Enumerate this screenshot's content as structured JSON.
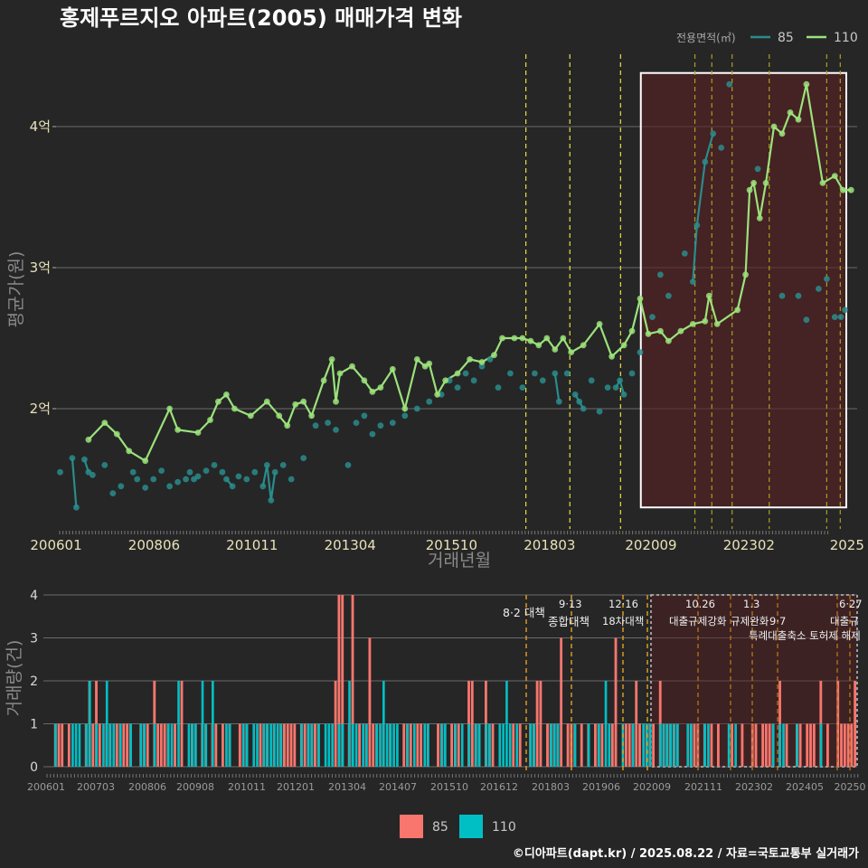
{
  "title": "홍제푸르지오 아파트(2005) 매매가격 변화",
  "legend": {
    "title": "전용면적(㎡)",
    "items": [
      {
        "name": "85",
        "color": "#2a8c8c"
      },
      {
        "name": "110",
        "color": "#9be27b"
      }
    ]
  },
  "bottom_legend": [
    {
      "name": "85",
      "color": "#f8766d"
    },
    {
      "name": "110",
      "color": "#00bfc4"
    }
  ],
  "credit": "©디아파트(dapt.kr) / 2025.08.22 / 자료=국토교통부 실거래가",
  "chart_data": [
    {
      "type": "line",
      "ylabel": "평균가(원)",
      "xlabel": "거래년월",
      "ylim": [
        1.25,
        4.45
      ],
      "yticks": [
        {
          "v": 2,
          "label": "2억"
        },
        {
          "v": 3,
          "label": "3억"
        },
        {
          "v": 4,
          "label": "4억"
        }
      ],
      "xlim": [
        2006.0,
        2025.75
      ],
      "xticks": [
        {
          "v": 2006.0,
          "label": "200601"
        },
        {
          "v": 2008.417,
          "label": "200806"
        },
        {
          "v": 2010.833,
          "label": "201011"
        },
        {
          "v": 2013.25,
          "label": "201304"
        },
        {
          "v": 2015.75,
          "label": "201510"
        },
        {
          "v": 2018.167,
          "label": "201803"
        },
        {
          "v": 2020.667,
          "label": "202009"
        },
        {
          "v": 2023.083,
          "label": "202302"
        },
        {
          "v": 2025.5,
          "label": "2025"
        }
      ],
      "policy_lines": [
        2017.583,
        2018.667,
        2019.917,
        2021.75,
        2022.167,
        2022.667,
        2023.583,
        2025.0,
        2025.333
      ],
      "highlight": {
        "x0": 2020.417,
        "x1": 2025.75,
        "y0": 1.3,
        "y1": 4.38
      },
      "series": [
        {
          "name": "85",
          "color": "#2a8c8c",
          "points": [
            [
              2006.1,
              1.55
            ],
            [
              2006.4,
              1.65
            ],
            [
              2006.5,
              1.3
            ],
            [
              2006.7,
              1.64
            ],
            [
              2006.8,
              1.55
            ],
            [
              2006.9,
              1.53
            ],
            [
              2007.2,
              1.6
            ],
            [
              2007.4,
              1.4
            ],
            [
              2007.6,
              1.45
            ],
            [
              2007.9,
              1.55
            ],
            [
              2008.0,
              1.5
            ],
            [
              2008.2,
              1.44
            ],
            [
              2008.4,
              1.5
            ],
            [
              2008.6,
              1.56
            ],
            [
              2008.8,
              1.45
            ],
            [
              2009.0,
              1.48
            ],
            [
              2009.2,
              1.5
            ],
            [
              2009.3,
              1.55
            ],
            [
              2009.4,
              1.5
            ],
            [
              2009.5,
              1.52
            ],
            [
              2009.7,
              1.56
            ],
            [
              2009.9,
              1.6
            ],
            [
              2010.1,
              1.55
            ],
            [
              2010.2,
              1.5
            ],
            [
              2010.35,
              1.45
            ],
            [
              2010.5,
              1.52
            ],
            [
              2010.7,
              1.5
            ],
            [
              2010.9,
              1.55
            ],
            [
              2011.1,
              1.45
            ],
            [
              2011.2,
              1.6
            ],
            [
              2011.3,
              1.35
            ],
            [
              2011.4,
              1.55
            ],
            [
              2011.6,
              1.6
            ],
            [
              2011.8,
              1.5
            ],
            [
              2012.1,
              1.65
            ],
            [
              2012.4,
              1.88
            ],
            [
              2012.7,
              1.9
            ],
            [
              2012.9,
              1.85
            ],
            [
              2013.2,
              1.6
            ],
            [
              2013.4,
              1.9
            ],
            [
              2013.6,
              1.95
            ],
            [
              2013.8,
              1.82
            ],
            [
              2014.0,
              1.88
            ],
            [
              2014.3,
              1.9
            ],
            [
              2014.6,
              1.95
            ],
            [
              2014.9,
              2.0
            ],
            [
              2015.2,
              2.05
            ],
            [
              2015.5,
              2.1
            ],
            [
              2015.7,
              2.2
            ],
            [
              2015.9,
              2.15
            ],
            [
              2016.1,
              2.25
            ],
            [
              2016.3,
              2.2
            ],
            [
              2016.5,
              2.3
            ],
            [
              2016.7,
              2.35
            ],
            [
              2016.9,
              2.15
            ],
            [
              2017.2,
              2.25
            ],
            [
              2017.5,
              2.15
            ],
            [
              2017.8,
              2.25
            ],
            [
              2018.0,
              2.2
            ],
            [
              2018.3,
              2.25
            ],
            [
              2018.4,
              2.05
            ],
            [
              2018.6,
              2.25
            ],
            [
              2018.8,
              2.1
            ],
            [
              2018.9,
              2.05
            ],
            [
              2019.0,
              2.0
            ],
            [
              2019.2,
              2.2
            ],
            [
              2019.4,
              1.98
            ],
            [
              2019.6,
              2.15
            ],
            [
              2019.8,
              2.15
            ],
            [
              2019.9,
              2.2
            ],
            [
              2020.0,
              2.1
            ],
            [
              2020.2,
              2.25
            ],
            [
              2020.4,
              2.4
            ],
            [
              2020.7,
              2.65
            ],
            [
              2020.9,
              2.95
            ],
            [
              2021.1,
              2.8
            ],
            [
              2021.5,
              3.1
            ],
            [
              2021.7,
              2.9
            ],
            [
              2021.8,
              3.3
            ],
            [
              2022.0,
              3.75
            ],
            [
              2022.2,
              3.95
            ],
            [
              2022.4,
              3.85
            ],
            [
              2022.6,
              4.3
            ],
            [
              2023.3,
              3.7
            ],
            [
              2023.9,
              2.8
            ],
            [
              2024.3,
              2.8
            ],
            [
              2024.5,
              2.63
            ],
            [
              2024.8,
              2.85
            ],
            [
              2025.0,
              2.92
            ],
            [
              2025.2,
              2.65
            ],
            [
              2025.35,
              2.65
            ],
            [
              2025.45,
              2.7
            ]
          ],
          "line_segments": [
            [
              [
                2006.4,
                1.65
              ],
              [
                2006.5,
                1.3
              ]
            ],
            [
              [
                2006.7,
                1.64
              ],
              [
                2006.8,
                1.55
              ]
            ],
            [
              [
                2010.2,
                1.5
              ],
              [
                2010.35,
                1.45
              ]
            ],
            [
              [
                2011.1,
                1.45
              ],
              [
                2011.2,
                1.6
              ],
              [
                2011.3,
                1.35
              ],
              [
                2011.4,
                1.55
              ]
            ],
            [
              [
                2018.3,
                2.25
              ],
              [
                2018.4,
                2.05
              ]
            ],
            [
              [
                2018.8,
                2.1
              ],
              [
                2018.9,
                2.05
              ],
              [
                2019.0,
                2.0
              ]
            ],
            [
              [
                2019.8,
                2.15
              ],
              [
                2019.9,
                2.2
              ],
              [
                2020.0,
                2.1
              ]
            ],
            [
              [
                2021.7,
                2.9
              ],
              [
                2021.8,
                3.3
              ],
              [
                2022.0,
                3.75
              ],
              [
                2022.2,
                3.95
              ]
            ]
          ]
        },
        {
          "name": "110",
          "color": "#9be27b",
          "points": [
            [
              2006.8,
              1.78
            ],
            [
              2007.2,
              1.9
            ],
            [
              2007.5,
              1.82
            ],
            [
              2007.8,
              1.7
            ],
            [
              2008.2,
              1.63
            ],
            [
              2008.8,
              2.0
            ],
            [
              2009.0,
              1.85
            ],
            [
              2009.5,
              1.83
            ],
            [
              2009.8,
              1.92
            ],
            [
              2010.0,
              2.05
            ],
            [
              2010.2,
              2.1
            ],
            [
              2010.4,
              2.0
            ],
            [
              2010.8,
              1.95
            ],
            [
              2011.2,
              2.05
            ],
            [
              2011.5,
              1.95
            ],
            [
              2011.7,
              1.88
            ],
            [
              2011.9,
              2.03
            ],
            [
              2012.1,
              2.05
            ],
            [
              2012.3,
              1.95
            ],
            [
              2012.6,
              2.2
            ],
            [
              2012.8,
              2.35
            ],
            [
              2012.9,
              2.05
            ],
            [
              2013.0,
              2.25
            ],
            [
              2013.3,
              2.3
            ],
            [
              2013.6,
              2.2
            ],
            [
              2013.8,
              2.12
            ],
            [
              2014.0,
              2.15
            ],
            [
              2014.3,
              2.28
            ],
            [
              2014.6,
              2.0
            ],
            [
              2014.9,
              2.35
            ],
            [
              2015.1,
              2.3
            ],
            [
              2015.2,
              2.32
            ],
            [
              2015.4,
              2.1
            ],
            [
              2015.6,
              2.2
            ],
            [
              2015.9,
              2.25
            ],
            [
              2016.2,
              2.35
            ],
            [
              2016.5,
              2.33
            ],
            [
              2016.8,
              2.38
            ],
            [
              2017.0,
              2.5
            ],
            [
              2017.3,
              2.5
            ],
            [
              2017.5,
              2.5
            ],
            [
              2017.7,
              2.48
            ],
            [
              2017.9,
              2.45
            ],
            [
              2018.1,
              2.5
            ],
            [
              2018.3,
              2.42
            ],
            [
              2018.5,
              2.5
            ],
            [
              2018.7,
              2.4
            ],
            [
              2019.0,
              2.45
            ],
            [
              2019.4,
              2.6
            ],
            [
              2019.7,
              2.37
            ],
            [
              2020.0,
              2.45
            ],
            [
              2020.2,
              2.55
            ],
            [
              2020.4,
              2.78
            ],
            [
              2020.6,
              2.53
            ],
            [
              2020.9,
              2.55
            ],
            [
              2021.1,
              2.48
            ],
            [
              2021.4,
              2.55
            ],
            [
              2021.7,
              2.6
            ],
            [
              2022.0,
              2.62
            ],
            [
              2022.1,
              2.8
            ],
            [
              2022.3,
              2.6
            ],
            [
              2022.8,
              2.7
            ],
            [
              2023.0,
              2.95
            ],
            [
              2023.1,
              3.55
            ],
            [
              2023.2,
              3.6
            ],
            [
              2023.35,
              3.35
            ],
            [
              2023.5,
              3.6
            ],
            [
              2023.7,
              4.0
            ],
            [
              2023.9,
              3.95
            ],
            [
              2024.1,
              4.1
            ],
            [
              2024.3,
              4.05
            ],
            [
              2024.5,
              4.3
            ],
            [
              2024.9,
              3.6
            ],
            [
              2025.2,
              3.65
            ],
            [
              2025.4,
              3.55
            ],
            [
              2025.6,
              3.55
            ]
          ],
          "line": [
            [
              2006.8,
              1.78
            ],
            [
              2007.2,
              1.9
            ],
            [
              2007.5,
              1.82
            ],
            [
              2007.8,
              1.7
            ],
            [
              2008.2,
              1.63
            ],
            [
              2008.8,
              2.0
            ],
            [
              2009.0,
              1.85
            ],
            [
              2009.5,
              1.83
            ],
            [
              2009.8,
              1.92
            ],
            [
              2010.0,
              2.05
            ],
            [
              2010.2,
              2.1
            ],
            [
              2010.4,
              2.0
            ]
          ]
        }
      ]
    },
    {
      "type": "bar",
      "ylabel": "거래량(건)",
      "ylim": [
        0,
        4
      ],
      "yticks": [
        0,
        1,
        2,
        3,
        4
      ],
      "xticks": [
        "200601",
        "200703",
        "200806",
        "200908",
        "201011",
        "201201",
        "201304",
        "201407",
        "201510",
        "201612",
        "201803",
        "201906",
        "202009",
        "202111",
        "202302",
        "202405",
        "20250"
      ],
      "annotations": [
        {
          "date": "8·2 대책",
          "label": ""
        },
        {
          "date": "9·13",
          "label": "종합대책"
        },
        {
          "date": "12·16",
          "label": "18차대책"
        },
        {
          "date": "10.26",
          "label": "대출규제강화"
        },
        {
          "date": "1.3",
          "label": "규제완화"
        },
        {
          "date": "9·7",
          "label": "특례대출축소 토허제 해제"
        },
        {
          "date": "6·27",
          "label": "대출규"
        }
      ],
      "series": [
        {
          "name": "85",
          "color": "#f8766d"
        },
        {
          "name": "110",
          "color": "#00bfc4"
        }
      ]
    }
  ]
}
